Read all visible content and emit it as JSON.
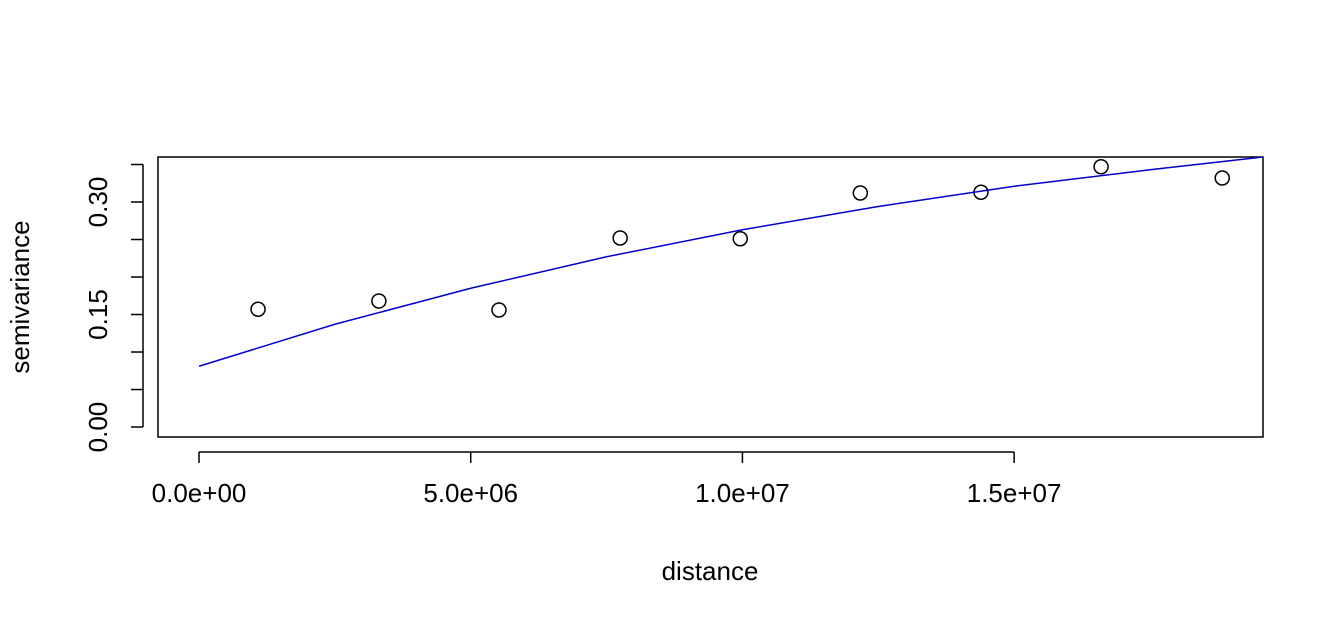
{
  "chart_data": {
    "type": "scatter",
    "xlabel": "distance",
    "ylabel": "semivariance",
    "xlim": [
      -755000,
      19580000
    ],
    "ylim": [
      -0.0133,
      0.36
    ],
    "xticks": [
      {
        "value": 0,
        "label": "0.0e+00"
      },
      {
        "value": 5000000,
        "label": "5.0e+06"
      },
      {
        "value": 10000000,
        "label": "1.0e+07"
      },
      {
        "value": 15000000,
        "label": "1.5e+07"
      }
    ],
    "yticks": [
      {
        "value": 0,
        "label": "0.00"
      },
      {
        "value": 0.15,
        "label": "0.15"
      },
      {
        "value": 0.3,
        "label": "0.30"
      }
    ],
    "yminor_ticks": [
      0.05,
      0.1,
      0.2,
      0.25,
      0.35
    ],
    "series": [
      {
        "type": "scatter",
        "color": "#000000",
        "x": [
          1086000,
          3310000,
          5520000,
          7750000,
          9960000,
          12170000,
          14390000,
          16600000,
          18830000
        ],
        "values": [
          0.157,
          0.168,
          0.156,
          0.252,
          0.251,
          0.312,
          0.313,
          0.347,
          0.332
        ]
      },
      {
        "type": "line",
        "color": "#0000cd",
        "x": [
          0,
          2500000,
          5000000,
          7500000,
          10000000,
          12500000,
          15000000,
          17500000,
          19580000
        ],
        "values": [
          0.081,
          0.137,
          0.185,
          0.227,
          0.263,
          0.294,
          0.321,
          0.343,
          0.36
        ]
      }
    ]
  }
}
